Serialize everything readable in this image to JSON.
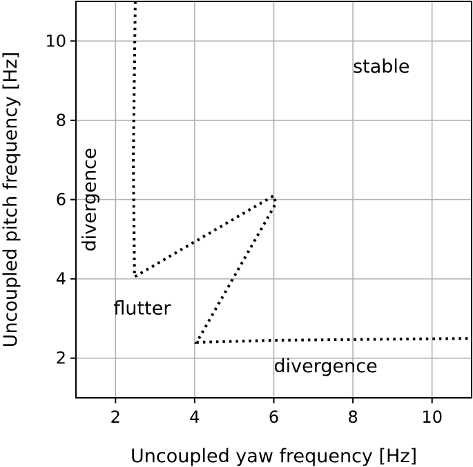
{
  "chart_data": {
    "type": "line",
    "title": "",
    "xlabel": "Uncoupled yaw frequency [Hz]",
    "ylabel": "Uncoupled pitch frequency [Hz]",
    "xlim": [
      1,
      11
    ],
    "ylim": [
      1,
      11
    ],
    "grid": true,
    "xticks": [
      2,
      4,
      6,
      8,
      10
    ],
    "yticks": [
      2,
      4,
      6,
      8,
      10
    ],
    "series": [
      {
        "style": "dotted",
        "color": "#000000",
        "x": [
          2.5,
          2.45,
          2.48,
          6.0,
          6.05,
          4.05,
          6.0,
          11.0
        ],
        "y": [
          11.0,
          7.0,
          4.05,
          6.1,
          5.9,
          2.4,
          2.45,
          2.5
        ]
      }
    ],
    "annotations": [
      {
        "text": "stable",
        "x": 8.0,
        "y": 9.2,
        "rotation": 0
      },
      {
        "text": "divergence",
        "x": 1.5,
        "y": 6.0,
        "rotation": -90
      },
      {
        "text": "flutter",
        "x": 1.95,
        "y": 3.1,
        "rotation": 0
      },
      {
        "text": "divergence",
        "x": 6.0,
        "y": 1.65,
        "rotation": 0
      }
    ],
    "colors": {
      "grid": "#b0b0b0",
      "axes": "#000000",
      "line": "#000000"
    }
  }
}
